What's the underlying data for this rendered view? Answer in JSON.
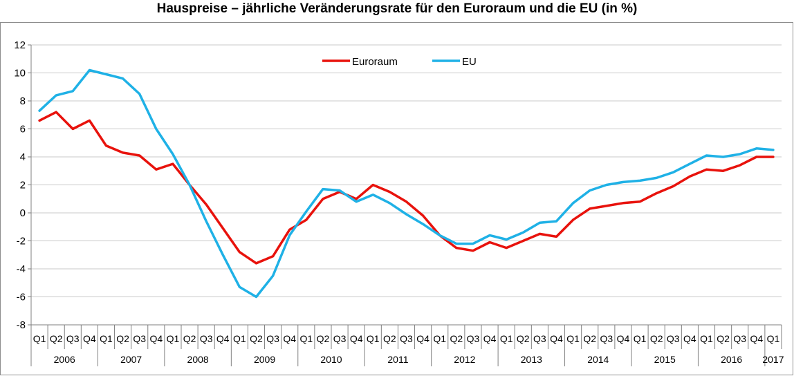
{
  "chart_data": {
    "type": "line",
    "title": "Hauspreise – jährliche Veränderungsrate für den Euroraum und die EU (in %)",
    "xlabel": "",
    "ylabel": "",
    "ylim": [
      -8,
      12
    ],
    "yticks": [
      -8,
      -6,
      -4,
      -2,
      0,
      2,
      4,
      6,
      8,
      10,
      12
    ],
    "grid": true,
    "legend_position": "top-center",
    "years": [
      "2006",
      "2007",
      "2008",
      "2009",
      "2010",
      "2011",
      "2012",
      "2013",
      "2014",
      "2015",
      "2016",
      "2017"
    ],
    "quarters": [
      "Q1",
      "Q2",
      "Q3",
      "Q4"
    ],
    "categories": [
      "2006 Q1",
      "2006 Q2",
      "2006 Q3",
      "2006 Q4",
      "2007 Q1",
      "2007 Q2",
      "2007 Q3",
      "2007 Q4",
      "2008 Q1",
      "2008 Q2",
      "2008 Q3",
      "2008 Q4",
      "2009 Q1",
      "2009 Q2",
      "2009 Q3",
      "2009 Q4",
      "2010 Q1",
      "2010 Q2",
      "2010 Q3",
      "2010 Q4",
      "2011 Q1",
      "2011 Q2",
      "2011 Q3",
      "2011 Q4",
      "2012 Q1",
      "2012 Q2",
      "2012 Q3",
      "2012 Q4",
      "2013 Q1",
      "2013 Q2",
      "2013 Q3",
      "2013 Q4",
      "2014 Q1",
      "2014 Q2",
      "2014 Q3",
      "2014 Q4",
      "2015 Q1",
      "2015 Q2",
      "2015 Q3",
      "2015 Q4",
      "2016 Q1",
      "2016 Q2",
      "2016 Q3",
      "2016 Q4",
      "2017 Q1"
    ],
    "series": [
      {
        "name": "Euroraum",
        "color": "#e8120c",
        "values": [
          6.6,
          7.2,
          6.0,
          6.6,
          4.8,
          4.3,
          4.1,
          3.1,
          3.5,
          2.0,
          0.6,
          -1.1,
          -2.8,
          -3.6,
          -3.1,
          -1.2,
          -0.5,
          1.0,
          1.5,
          1.0,
          2.0,
          1.5,
          0.8,
          -0.2,
          -1.6,
          -2.5,
          -2.7,
          -2.1,
          -2.5,
          -2.0,
          -1.5,
          -1.7,
          -0.5,
          0.3,
          0.5,
          0.7,
          0.8,
          1.4,
          1.9,
          2.6,
          3.1,
          3.0,
          3.4,
          4.0,
          4.0
        ]
      },
      {
        "name": "EU",
        "color": "#1fb1e6",
        "values": [
          7.3,
          8.4,
          8.7,
          10.2,
          9.9,
          9.6,
          8.5,
          6.0,
          4.2,
          2.0,
          -0.6,
          -3.0,
          -5.3,
          -6.0,
          -4.5,
          -1.6,
          0.1,
          1.7,
          1.6,
          0.8,
          1.3,
          0.7,
          -0.1,
          -0.8,
          -1.6,
          -2.2,
          -2.2,
          -1.6,
          -1.9,
          -1.4,
          -0.7,
          -0.6,
          0.7,
          1.6,
          2.0,
          2.2,
          2.3,
          2.5,
          2.9,
          3.5,
          4.1,
          4.0,
          4.2,
          4.6,
          4.5
        ]
      }
    ]
  }
}
